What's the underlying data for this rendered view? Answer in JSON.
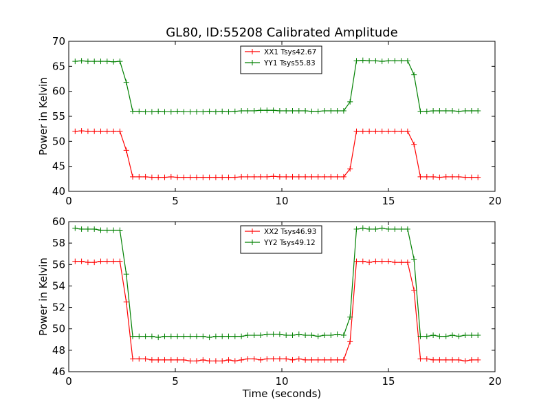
{
  "figure": {
    "title": "GL80, ID:55208 Calibrated Amplitude"
  },
  "chart_data": [
    {
      "type": "line",
      "title": "GL80, ID:55208 Calibrated Amplitude",
      "xlabel": "",
      "ylabel": "Power in Kelvin",
      "xlim": [
        0,
        20
      ],
      "ylim": [
        40,
        70
      ],
      "x_ticks": [
        0,
        5,
        10,
        15,
        20
      ],
      "y_ticks": [
        40,
        45,
        50,
        55,
        60,
        65,
        70
      ],
      "grid": false,
      "legend_position": "top-center",
      "x": [
        0.3,
        0.6,
        0.9,
        1.2,
        1.5,
        1.8,
        2.1,
        2.4,
        2.7,
        3.0,
        3.3,
        3.6,
        3.9,
        4.2,
        4.5,
        4.8,
        5.1,
        5.4,
        5.7,
        6.0,
        6.3,
        6.6,
        6.9,
        7.2,
        7.5,
        7.8,
        8.1,
        8.4,
        8.7,
        9.0,
        9.3,
        9.6,
        9.9,
        10.2,
        10.5,
        10.8,
        11.1,
        11.4,
        11.7,
        12.0,
        12.3,
        12.6,
        12.9,
        13.2,
        13.5,
        13.8,
        14.1,
        14.4,
        14.7,
        15.0,
        15.3,
        15.6,
        15.9,
        16.2,
        16.5,
        16.8,
        17.1,
        17.4,
        17.7,
        18.0,
        18.3,
        18.6,
        18.9,
        19.2
      ],
      "series": [
        {
          "name": "XX1 Tsys42.67",
          "color": "#ff0000",
          "values": [
            52.0,
            52.1,
            52.0,
            52.0,
            52.0,
            52.0,
            52.0,
            52.0,
            48.2,
            42.9,
            42.9,
            42.9,
            42.8,
            42.8,
            42.8,
            42.9,
            42.8,
            42.8,
            42.8,
            42.8,
            42.8,
            42.8,
            42.8,
            42.8,
            42.8,
            42.8,
            42.9,
            42.9,
            42.9,
            42.9,
            42.9,
            43.0,
            42.9,
            42.9,
            42.9,
            42.9,
            42.9,
            42.9,
            42.9,
            42.9,
            42.9,
            42.9,
            42.9,
            44.5,
            52.0,
            52.0,
            52.0,
            52.0,
            52.0,
            52.0,
            52.0,
            52.0,
            52.0,
            49.4,
            42.9,
            42.9,
            42.9,
            42.8,
            42.9,
            42.9,
            42.9,
            42.8,
            42.8,
            42.8
          ]
        },
        {
          "name": "YY1 Tsys55.83",
          "color": "#008000",
          "values": [
            66.0,
            66.1,
            66.0,
            66.0,
            66.0,
            66.0,
            65.9,
            66.0,
            61.8,
            56.0,
            56.0,
            55.9,
            55.9,
            56.0,
            55.9,
            55.9,
            56.0,
            55.9,
            55.9,
            55.9,
            55.9,
            56.0,
            55.9,
            56.0,
            55.9,
            56.0,
            56.1,
            56.1,
            56.1,
            56.2,
            56.2,
            56.2,
            56.1,
            56.1,
            56.1,
            56.1,
            56.1,
            56.0,
            56.0,
            56.1,
            56.1,
            56.1,
            56.1,
            57.9,
            66.1,
            66.2,
            66.1,
            66.1,
            66.0,
            66.1,
            66.1,
            66.1,
            66.1,
            63.3,
            56.0,
            56.0,
            56.1,
            56.1,
            56.1,
            56.1,
            56.0,
            56.1,
            56.1,
            56.1
          ]
        }
      ]
    },
    {
      "type": "line",
      "title": "",
      "xlabel": "Time (seconds)",
      "ylabel": "Power in Kelvin",
      "xlim": [
        0,
        20
      ],
      "ylim": [
        46,
        60
      ],
      "x_ticks": [
        0,
        5,
        10,
        15,
        20
      ],
      "y_ticks": [
        46,
        48,
        50,
        52,
        54,
        56,
        58,
        60
      ],
      "grid": false,
      "legend_position": "top-center",
      "x": [
        0.3,
        0.6,
        0.9,
        1.2,
        1.5,
        1.8,
        2.1,
        2.4,
        2.7,
        3.0,
        3.3,
        3.6,
        3.9,
        4.2,
        4.5,
        4.8,
        5.1,
        5.4,
        5.7,
        6.0,
        6.3,
        6.6,
        6.9,
        7.2,
        7.5,
        7.8,
        8.1,
        8.4,
        8.7,
        9.0,
        9.3,
        9.6,
        9.9,
        10.2,
        10.5,
        10.8,
        11.1,
        11.4,
        11.7,
        12.0,
        12.3,
        12.6,
        12.9,
        13.2,
        13.5,
        13.8,
        14.1,
        14.4,
        14.7,
        15.0,
        15.3,
        15.6,
        15.9,
        16.2,
        16.5,
        16.8,
        17.1,
        17.4,
        17.7,
        18.0,
        18.3,
        18.6,
        18.9,
        19.2
      ],
      "series": [
        {
          "name": "XX2 Tsys46.93",
          "color": "#ff0000",
          "values": [
            56.3,
            56.3,
            56.2,
            56.2,
            56.3,
            56.3,
            56.3,
            56.3,
            52.5,
            47.2,
            47.2,
            47.2,
            47.1,
            47.1,
            47.1,
            47.1,
            47.1,
            47.1,
            47.0,
            47.0,
            47.1,
            47.0,
            47.0,
            47.0,
            47.1,
            47.0,
            47.1,
            47.2,
            47.2,
            47.1,
            47.2,
            47.2,
            47.2,
            47.2,
            47.1,
            47.2,
            47.1,
            47.1,
            47.1,
            47.1,
            47.1,
            47.1,
            47.1,
            48.8,
            56.3,
            56.3,
            56.2,
            56.3,
            56.3,
            56.3,
            56.2,
            56.2,
            56.2,
            53.6,
            47.2,
            47.2,
            47.1,
            47.1,
            47.1,
            47.1,
            47.1,
            47.0,
            47.1,
            47.1
          ]
        },
        {
          "name": "YY2 Tsys49.12",
          "color": "#008000",
          "values": [
            59.4,
            59.3,
            59.3,
            59.3,
            59.2,
            59.2,
            59.2,
            59.2,
            55.1,
            49.3,
            49.3,
            49.3,
            49.3,
            49.2,
            49.3,
            49.3,
            49.3,
            49.3,
            49.3,
            49.3,
            49.3,
            49.2,
            49.3,
            49.3,
            49.3,
            49.3,
            49.3,
            49.4,
            49.4,
            49.4,
            49.5,
            49.5,
            49.5,
            49.4,
            49.4,
            49.5,
            49.4,
            49.4,
            49.3,
            49.4,
            49.4,
            49.5,
            49.4,
            51.1,
            59.3,
            59.4,
            59.3,
            59.3,
            59.4,
            59.3,
            59.3,
            59.3,
            59.3,
            56.5,
            49.3,
            49.3,
            49.4,
            49.3,
            49.3,
            49.4,
            49.3,
            49.4,
            49.4,
            49.4
          ]
        }
      ]
    }
  ]
}
